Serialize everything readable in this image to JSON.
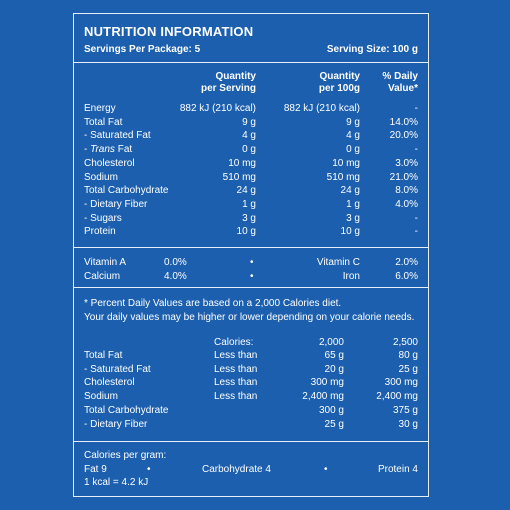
{
  "title": "NUTRITION INFORMATION",
  "servings_per_package": "Servings Per Package: 5",
  "serving_size": "Serving Size: 100 g",
  "headers": {
    "qty_serving_1": "Quantity",
    "qty_serving_2": "per Serving",
    "qty_100g_1": "Quantity",
    "qty_100g_2": "per 100g",
    "daily_1": "% Daily",
    "daily_2": "Value*"
  },
  "nutrients": [
    {
      "name": "Energy",
      "per_serving": "882 kJ (210 kcal)",
      "per_100g": "882 kJ (210 kcal)",
      "daily": "-"
    },
    {
      "name": "Total Fat",
      "per_serving": "9 g",
      "per_100g": "9 g",
      "daily": "14.0%"
    },
    {
      "name": "- Saturated Fat",
      "per_serving": "4 g",
      "per_100g": "4 g",
      "daily": "20.0%"
    },
    {
      "name_prefix": "- ",
      "name_italic": "Trans",
      "name_suffix": " Fat",
      "per_serving": "0 g",
      "per_100g": "0 g",
      "daily": "-"
    },
    {
      "name": "Cholesterol",
      "per_serving": "10 mg",
      "per_100g": "10 mg",
      "daily": "3.0%"
    },
    {
      "name": "Sodium",
      "per_serving": "510 mg",
      "per_100g": "510 mg",
      "daily": "21.0%"
    },
    {
      "name": "Total Carbohydrate",
      "per_serving": "24 g",
      "per_100g": "24 g",
      "daily": "8.0%"
    },
    {
      "name": "- Dietary Fiber",
      "per_serving": "1 g",
      "per_100g": "1 g",
      "daily": "4.0%"
    },
    {
      "name": "- Sugars",
      "per_serving": "3 g",
      "per_100g": "3 g",
      "daily": "-"
    },
    {
      "name": "Protein",
      "per_serving": "10 g",
      "per_100g": "10 g",
      "daily": "-"
    }
  ],
  "vitamins": [
    {
      "left_name": "Vitamin A",
      "left_value": "0.0%",
      "bullet": "•",
      "right_name": "Vitamin C",
      "right_value": "2.0%"
    },
    {
      "left_name": "Calcium",
      "left_value": "4.0%",
      "bullet": "•",
      "right_name": "Iron",
      "right_value": "6.0%"
    }
  ],
  "footnote_1": "* Percent Daily Values are based on a 2,000 Calories diet.",
  "footnote_2": "Your daily values may be higher or lower depending on your calorie needs.",
  "reference": {
    "header": {
      "label": "Calories:",
      "col1": "2,000",
      "col2": "2,500"
    },
    "rows": [
      {
        "name": "Total Fat",
        "limit": "Less than",
        "col1": "65 g",
        "col2": "80 g"
      },
      {
        "name": "- Saturated Fat",
        "limit": "Less than",
        "col1": "20 g",
        "col2": "25 g"
      },
      {
        "name": "Cholesterol",
        "limit": "Less than",
        "col1": "300 mg",
        "col2": "300 mg"
      },
      {
        "name": "Sodium",
        "limit": "Less than",
        "col1": "2,400 mg",
        "col2": "2,400 mg"
      },
      {
        "name": "Total Carbohydrate",
        "limit": "",
        "col1": "300 g",
        "col2": "375 g"
      },
      {
        "name": "- Dietary Fiber",
        "limit": "",
        "col1": "25 g",
        "col2": "30 g"
      }
    ]
  },
  "per_gram": {
    "heading": "Calories per gram:",
    "fat": "Fat 9",
    "bullet": "•",
    "carb": "Carbohydrate 4",
    "protein": "Protein 4",
    "conversion": "1 kcal = 4.2 kJ"
  },
  "colors": {
    "background": "#1B5FAE",
    "text": "#FFFFFF",
    "rule": "#E8EEF8"
  }
}
